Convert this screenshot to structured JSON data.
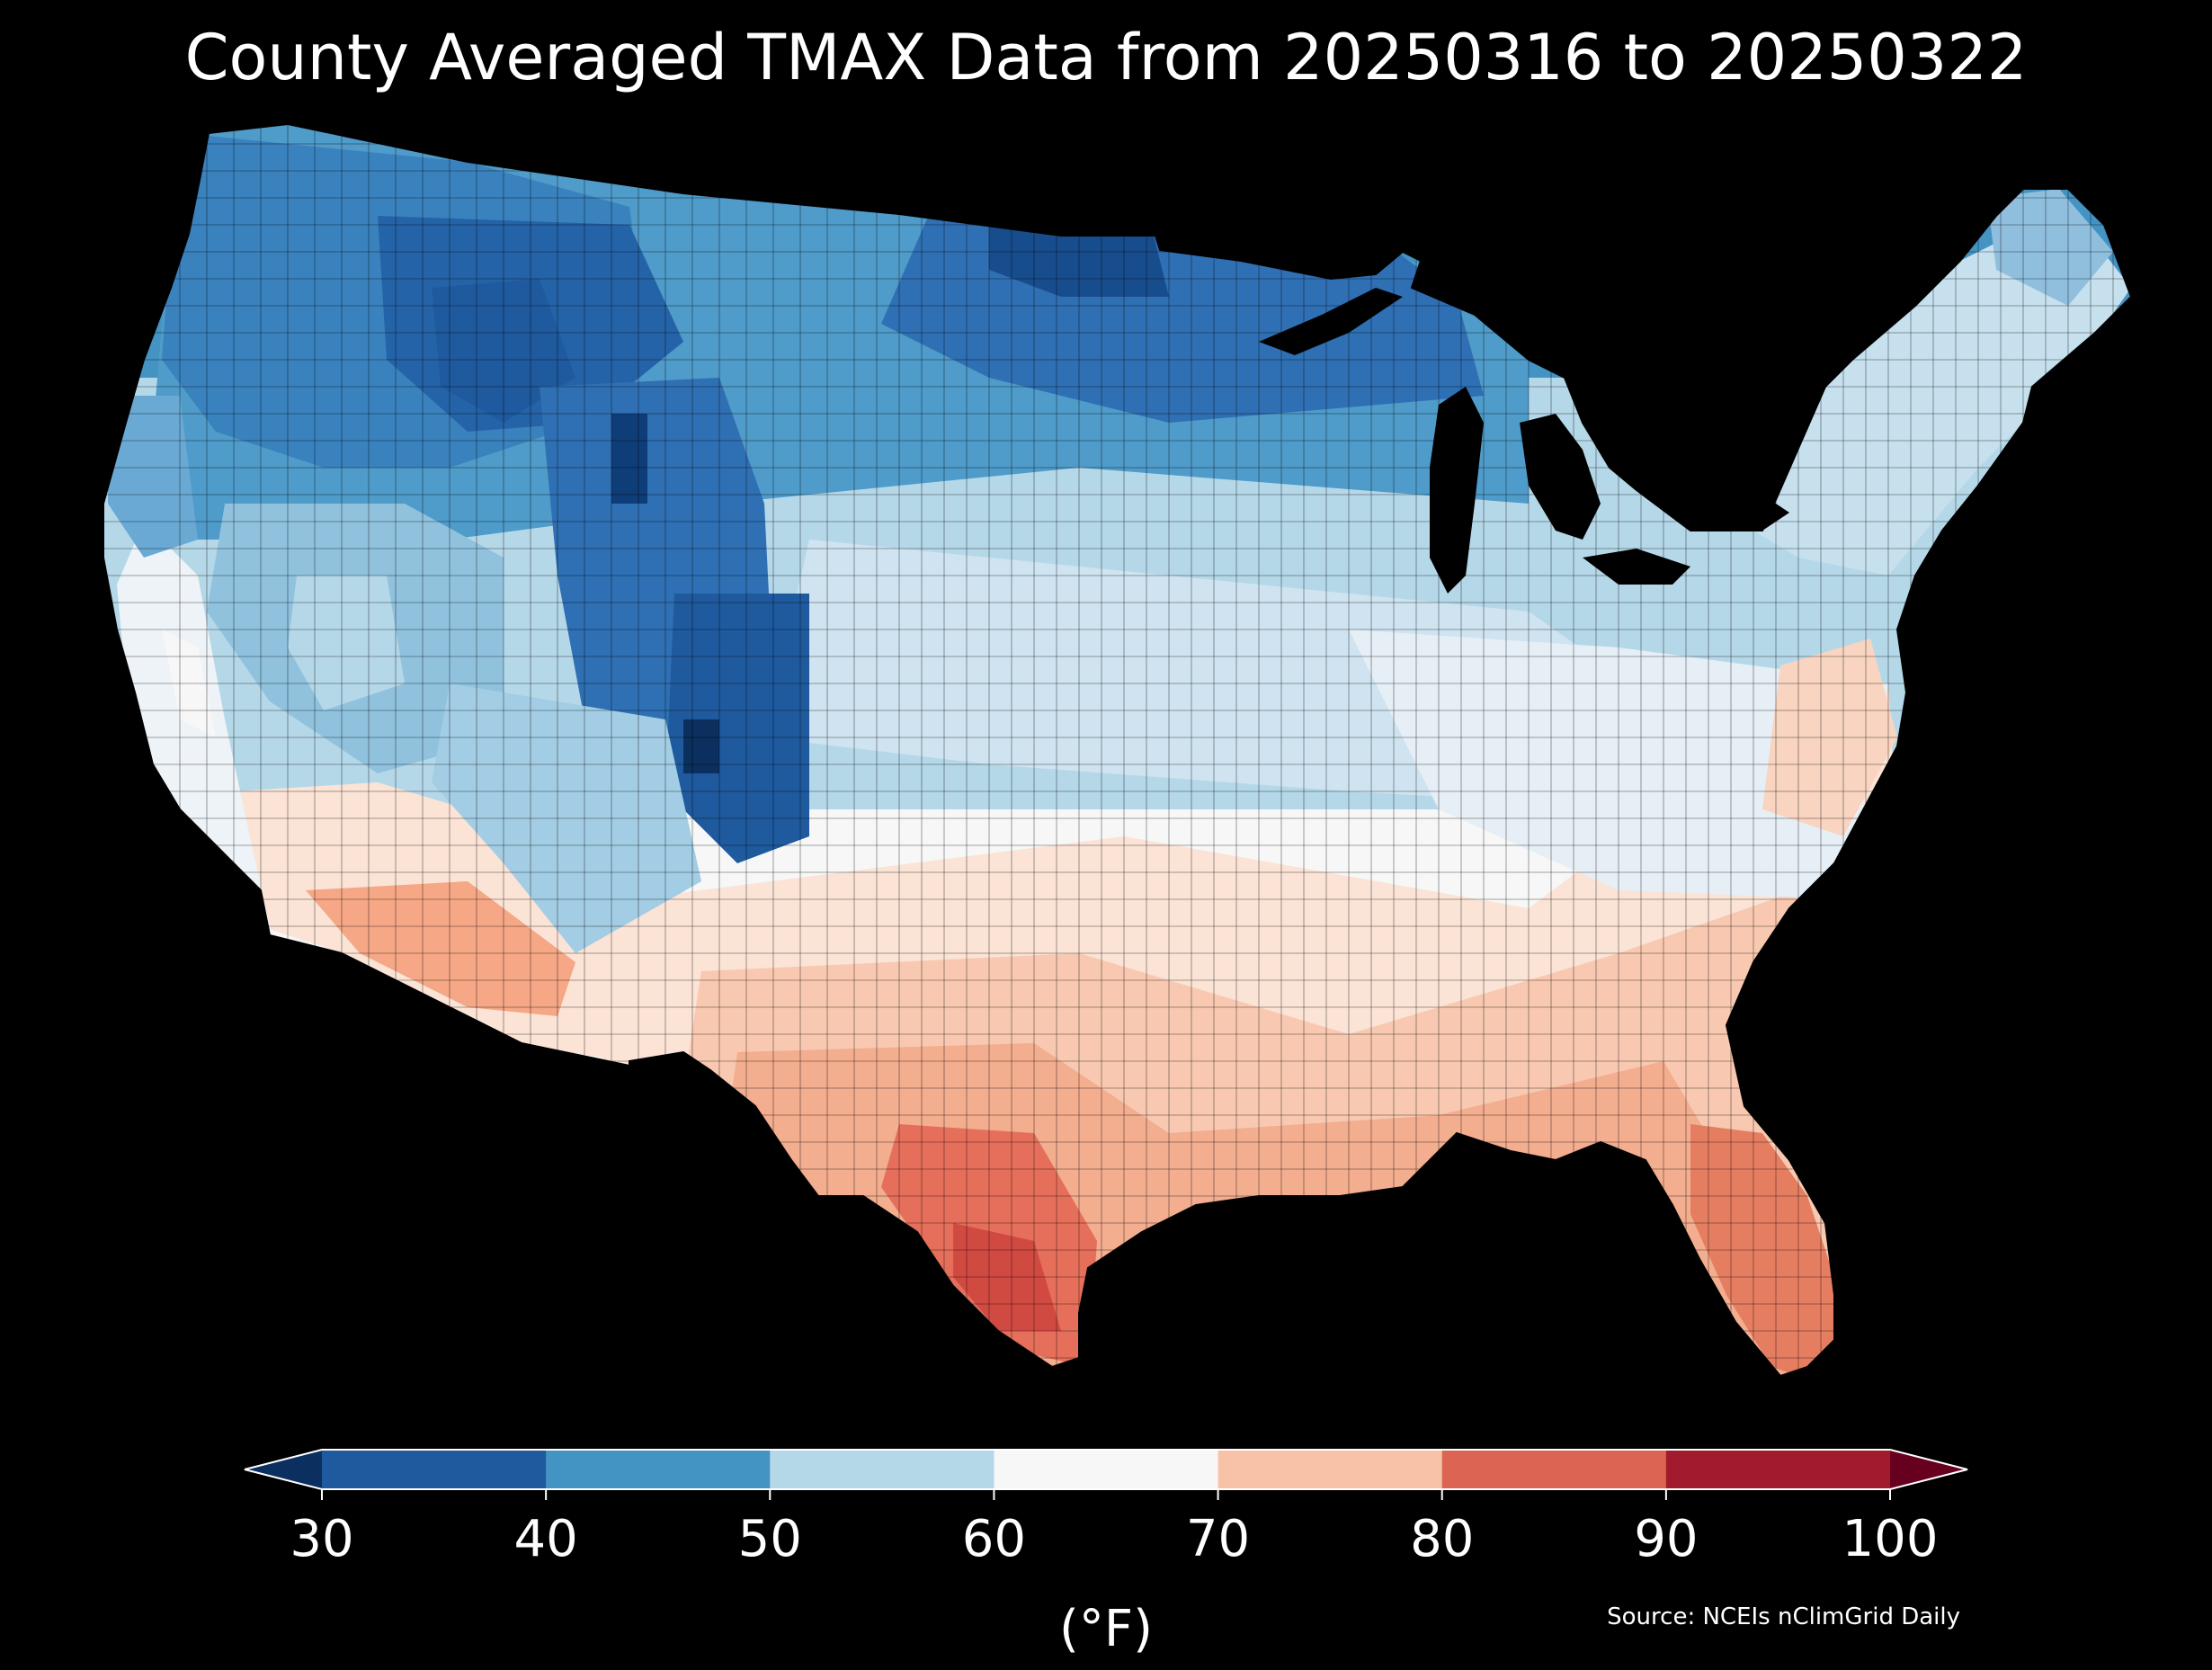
{
  "title": "County Averaged TMAX Data from 20250316 to 20250322",
  "source": "Source: NCEIs nClimGrid Daily",
  "colorbar": {
    "unit": "(°F)",
    "ticks": [
      "30",
      "40",
      "50",
      "60",
      "70",
      "80",
      "90",
      "100"
    ],
    "bins": [
      {
        "range": [
          30,
          40
        ],
        "color": "#1f5a9e"
      },
      {
        "range": [
          40,
          50
        ],
        "color": "#4393c3"
      },
      {
        "range": [
          50,
          60
        ],
        "color": "#b5d8e9"
      },
      {
        "range": [
          60,
          70
        ],
        "color": "#f7f7f7"
      },
      {
        "range": [
          70,
          80
        ],
        "color": "#f8c2a6"
      },
      {
        "range": [
          80,
          90
        ],
        "color": "#db6552"
      },
      {
        "range": [
          90,
          100
        ],
        "color": "#a11b2c"
      }
    ],
    "under_color": "#0b2f5e",
    "over_color": "#67001f",
    "extend": "both"
  },
  "map_regions": [
    {
      "region": "Pacific Northwest",
      "tmax_band": "40-50",
      "color": "#4393c3"
    },
    {
      "region": "Northern Rockies / Great Basin north",
      "tmax_band": "30-40",
      "color": "#1f5a9e"
    },
    {
      "region": "Colorado Rockies",
      "tmax_band": "30-40",
      "color": "#1f5a9e"
    },
    {
      "region": "Northern Plains / Upper Midwest",
      "tmax_band": "30-40",
      "color": "#2b6cb0"
    },
    {
      "region": "Central Plains / Midwest",
      "tmax_band": "50-60",
      "color": "#b5d8e9"
    },
    {
      "region": "Northeast",
      "tmax_band": "50-60",
      "color": "#c6e0ee"
    },
    {
      "region": "Ohio Valley / Appalachians",
      "tmax_band": "60-70",
      "color": "#eef3f7"
    },
    {
      "region": "California coast",
      "tmax_band": "60-70",
      "color": "#eef3f7"
    },
    {
      "region": "Desert Southwest",
      "tmax_band": "70-80",
      "color": "#f6b89a"
    },
    {
      "region": "Southeast",
      "tmax_band": "70-80",
      "color": "#f8c2a6"
    },
    {
      "region": "Florida",
      "tmax_band": "80-90",
      "color": "#e57e61"
    },
    {
      "region": "South Texas",
      "tmax_band": "80-90",
      "color": "#d9544a"
    }
  ]
}
